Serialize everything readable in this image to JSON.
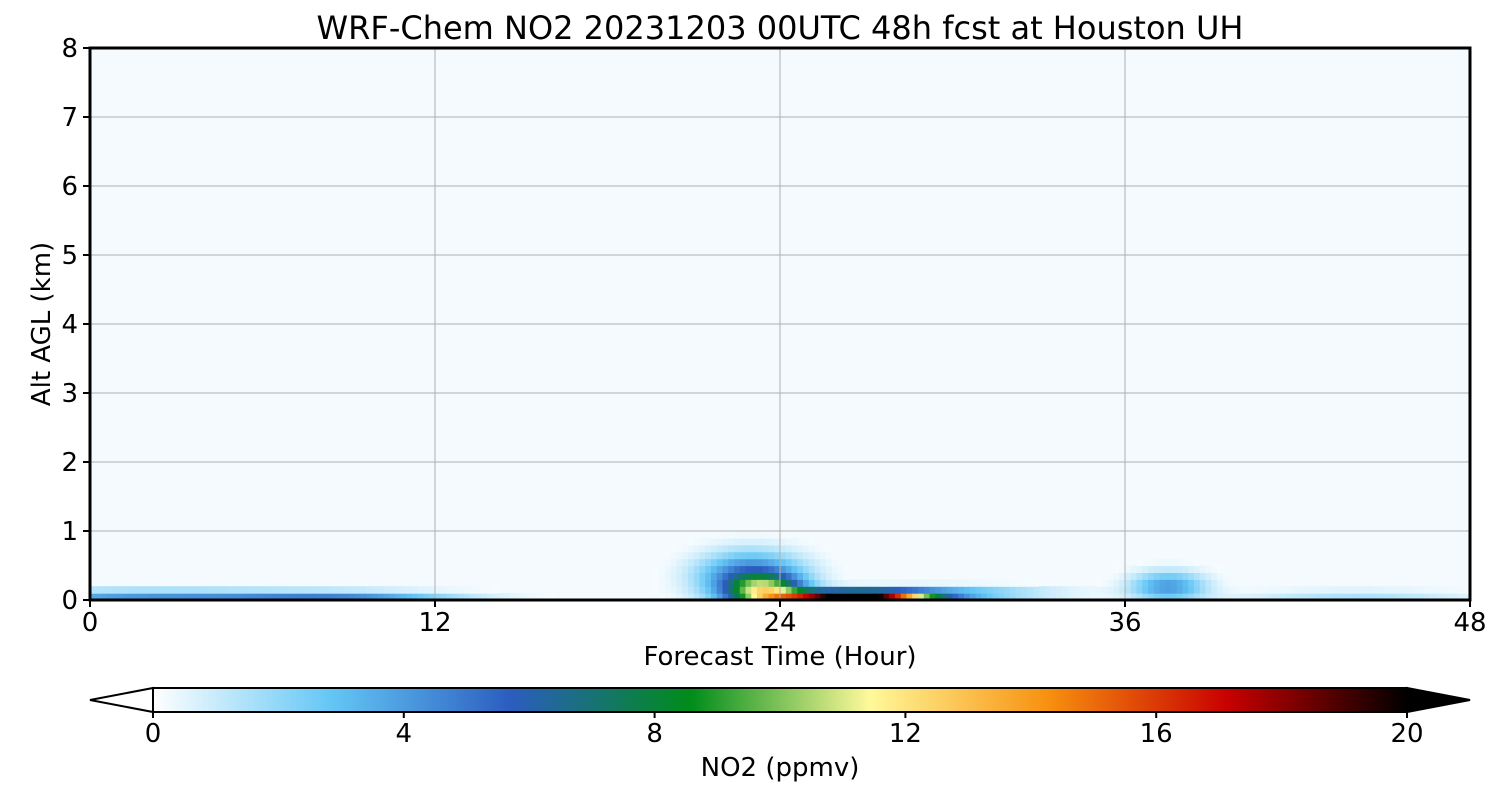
{
  "chart_data": {
    "type": "heatmap",
    "title": "WRF-Chem NO2  20231203 00UTC 48h fcst at Houston UH",
    "xlabel": "Forecast Time (Hour)",
    "ylabel": "Alt AGL (km)",
    "xlim": [
      0,
      48
    ],
    "ylim": [
      0,
      8
    ],
    "x_ticks": [
      "0",
      "12",
      "24",
      "36",
      "48"
    ],
    "y_ticks": [
      "0",
      "1",
      "2",
      "3",
      "4",
      "5",
      "6",
      "7",
      "8"
    ],
    "grid": true,
    "colorbar": {
      "label": "NO2  (ppmv)",
      "range": [
        0,
        20
      ],
      "ticks": [
        "0",
        "4",
        "8",
        "12",
        "16",
        "20"
      ],
      "extend": "both",
      "colors": [
        "#ffffff",
        "#63c6f5",
        "#2b5dbf",
        "#008c1a",
        "#fff99a",
        "#f7900f",
        "#c80000",
        "#000000"
      ]
    },
    "plumes": [
      {
        "x": 2.0,
        "z": 0.05,
        "sx": 6.0,
        "sz": 0.1,
        "value": 4.0
      },
      {
        "x": 9.0,
        "z": 0.05,
        "sx": 4.0,
        "sz": 0.08,
        "value": 3.5
      },
      {
        "x": 23.0,
        "z": 0.35,
        "sx": 1.8,
        "sz": 0.35,
        "value": 5.5
      },
      {
        "x": 23.5,
        "z": 0.15,
        "sx": 1.3,
        "sz": 0.2,
        "value": 7.5
      },
      {
        "x": 26.5,
        "z": 0.05,
        "sx": 2.5,
        "sz": 0.08,
        "value": 20.0
      },
      {
        "x": 29.0,
        "z": 0.1,
        "sx": 4.0,
        "sz": 0.1,
        "value": 4.0
      },
      {
        "x": 37.5,
        "z": 0.2,
        "sx": 1.3,
        "sz": 0.22,
        "value": 4.0
      },
      {
        "x": 44.0,
        "z": 0.05,
        "sx": 4.0,
        "sz": 0.1,
        "value": 1.5
      }
    ]
  }
}
